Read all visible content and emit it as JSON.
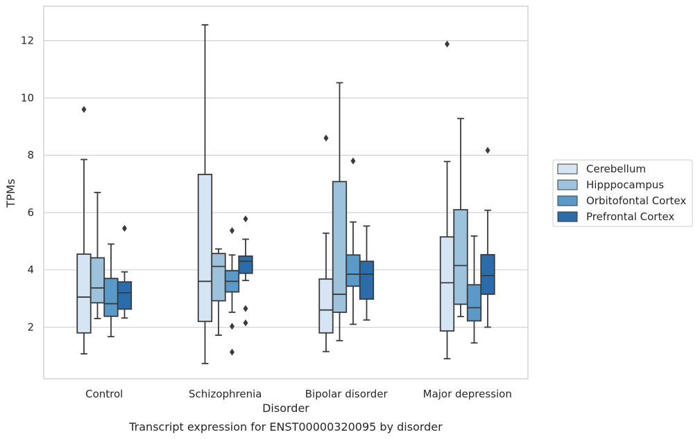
{
  "chart_data": {
    "type": "box",
    "caption": "Transcript expression for ENST00000320095 by disorder",
    "xlabel": "Disorder",
    "ylabel": "TPMs",
    "ylim": [
      0.2,
      13.2
    ],
    "yticks": [
      2,
      4,
      6,
      8,
      10,
      12
    ],
    "grid": "horizontal",
    "legend_position": "right",
    "categories": [
      "Control",
      "Schizophrenia",
      "Bipolar disorder",
      "Major depression"
    ],
    "series": [
      {
        "name": "Cerebellum",
        "color": "#d6e5f3",
        "boxes": [
          {
            "whislo": 1.07,
            "q1": 1.8,
            "med": 3.05,
            "q3": 4.55,
            "whishi": 7.85,
            "fliers": [
              9.6
            ]
          },
          {
            "whislo": 0.73,
            "q1": 2.2,
            "med": 3.6,
            "q3": 7.33,
            "whishi": 12.55,
            "fliers": []
          },
          {
            "whislo": 1.15,
            "q1": 1.8,
            "med": 2.6,
            "q3": 3.68,
            "whishi": 5.28,
            "fliers": [
              8.6
            ]
          },
          {
            "whislo": 0.9,
            "q1": 1.87,
            "med": 3.55,
            "q3": 5.15,
            "whishi": 7.78,
            "fliers": [
              11.88
            ]
          }
        ]
      },
      {
        "name": "Hipppocampus",
        "color": "#9dc3dc",
        "boxes": [
          {
            "whislo": 2.3,
            "q1": 2.85,
            "med": 3.37,
            "q3": 4.42,
            "whishi": 6.7,
            "fliers": []
          },
          {
            "whislo": 1.72,
            "q1": 2.92,
            "med": 4.12,
            "q3": 4.57,
            "whishi": 4.73,
            "fliers": []
          },
          {
            "whislo": 1.53,
            "q1": 2.52,
            "med": 3.15,
            "q3": 7.08,
            "whishi": 10.53,
            "fliers": []
          },
          {
            "whislo": 2.37,
            "q1": 2.8,
            "med": 4.15,
            "q3": 6.1,
            "whishi": 9.28,
            "fliers": []
          }
        ]
      },
      {
        "name": "Orbitofontal Cortex",
        "color": "#5a9ac8",
        "boxes": [
          {
            "whislo": 1.67,
            "q1": 2.38,
            "med": 2.82,
            "q3": 3.7,
            "whishi": 4.9,
            "fliers": []
          },
          {
            "whislo": 2.52,
            "q1": 3.23,
            "med": 3.6,
            "q3": 3.97,
            "whishi": 4.52,
            "fliers": [
              5.37,
              2.03,
              1.13
            ]
          },
          {
            "whislo": 2.1,
            "q1": 3.43,
            "med": 3.85,
            "q3": 4.52,
            "whishi": 5.67,
            "fliers": [
              7.8
            ]
          },
          {
            "whislo": 1.45,
            "q1": 2.22,
            "med": 2.68,
            "q3": 3.48,
            "whishi": 5.18,
            "fliers": []
          }
        ]
      },
      {
        "name": "Prefrontal Cortex",
        "color": "#2b6dab",
        "boxes": [
          {
            "whislo": 2.32,
            "q1": 2.63,
            "med": 3.2,
            "q3": 3.58,
            "whishi": 3.93,
            "fliers": [
              5.45
            ]
          },
          {
            "whislo": 3.63,
            "q1": 3.88,
            "med": 4.3,
            "q3": 4.48,
            "whishi": 5.07,
            "fliers": [
              5.78,
              2.65,
              2.15
            ]
          },
          {
            "whislo": 2.25,
            "q1": 2.98,
            "med": 3.85,
            "q3": 4.3,
            "whishi": 5.53,
            "fliers": []
          },
          {
            "whislo": 2.0,
            "q1": 3.15,
            "med": 3.8,
            "q3": 4.53,
            "whishi": 6.08,
            "fliers": [
              8.17
            ]
          }
        ]
      }
    ]
  }
}
